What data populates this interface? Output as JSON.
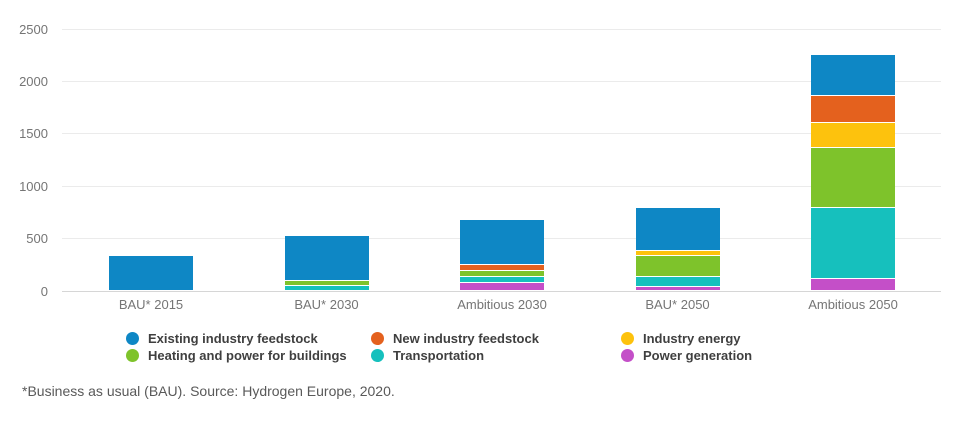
{
  "chart_data": {
    "type": "bar",
    "stacked": true,
    "categories": [
      "BAU* 2015",
      "BAU* 2030",
      "Ambitious 2030",
      "BAU* 2050",
      "Ambitious 2050"
    ],
    "series": [
      {
        "name": "Existing industry feedstock",
        "color": "#0e87c5",
        "values": [
          325,
          425,
          420,
          400,
          375
        ]
      },
      {
        "name": "New industry feedstock",
        "color": "#e4611e",
        "values": [
          0,
          0,
          60,
          0,
          260
        ]
      },
      {
        "name": "Industry energy",
        "color": "#fdc20d",
        "values": [
          0,
          0,
          0,
          50,
          240
        ]
      },
      {
        "name": "Heating and power for buildings",
        "color": "#7ec32b",
        "values": [
          0,
          50,
          55,
          200,
          575
        ]
      },
      {
        "name": "Transportation",
        "color": "#16c0bd",
        "values": [
          0,
          45,
          60,
          95,
          675
        ]
      },
      {
        "name": "Power generation",
        "color": "#c44fc8",
        "values": [
          0,
          0,
          75,
          35,
          115
        ]
      }
    ],
    "stack_order_bottom_to_top": [
      "Power generation",
      "Transportation",
      "Heating and power for buildings",
      "Industry energy",
      "New industry feedstock",
      "Existing industry feedstock"
    ],
    "totals": [
      325,
      520,
      670,
      780,
      2240
    ],
    "title": "",
    "xlabel": "",
    "ylabel": "",
    "y_ticks": [
      0,
      500,
      1000,
      1500,
      2000,
      2500
    ],
    "ylim": [
      0,
      2500
    ],
    "grid": true,
    "legend_position": "bottom",
    "gridline_color": "#ebebeb",
    "baseline_color": "#d6d6d6",
    "axis_text_color": "#757575",
    "legend_text_color": "#3f3f3f"
  },
  "footnote": "*Business as usual (BAU). Source: Hydrogen Europe, 2020."
}
